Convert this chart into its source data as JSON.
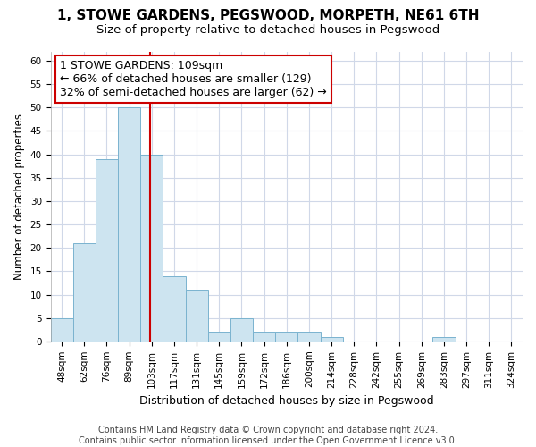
{
  "title": "1, STOWE GARDENS, PEGSWOOD, MORPETH, NE61 6TH",
  "subtitle": "Size of property relative to detached houses in Pegswood",
  "xlabel": "Distribution of detached houses by size in Pegswood",
  "ylabel": "Number of detached properties",
  "bin_labels": [
    "48sqm",
    "62sqm",
    "76sqm",
    "89sqm",
    "103sqm",
    "117sqm",
    "131sqm",
    "145sqm",
    "159sqm",
    "172sqm",
    "186sqm",
    "200sqm",
    "214sqm",
    "228sqm",
    "242sqm",
    "255sqm",
    "269sqm",
    "283sqm",
    "297sqm",
    "311sqm",
    "324sqm"
  ],
  "counts": [
    5,
    21,
    39,
    50,
    40,
    14,
    11,
    2,
    5,
    2,
    2,
    2,
    1,
    0,
    0,
    0,
    0,
    1,
    0,
    0,
    0
  ],
  "bar_color": "#cde4f0",
  "bar_edge_color": "#7ab3cf",
  "property_size_bin": 4,
  "vline_color": "#cc0000",
  "annotation_line1": "1 STOWE GARDENS: 109sqm",
  "annotation_line2": "← 66% of detached houses are smaller (129)",
  "annotation_line3": "32% of semi-detached houses are larger (62) →",
  "annotation_box_color": "#ffffff",
  "annotation_box_edge": "#cc0000",
  "ylim_max": 62,
  "yticks": [
    0,
    5,
    10,
    15,
    20,
    25,
    30,
    35,
    40,
    45,
    50,
    55,
    60
  ],
  "grid_color": "#d0d8e8",
  "footer_text": "Contains HM Land Registry data © Crown copyright and database right 2024.\nContains public sector information licensed under the Open Government Licence v3.0.",
  "title_fontsize": 11,
  "subtitle_fontsize": 9.5,
  "xlabel_fontsize": 9,
  "ylabel_fontsize": 8.5,
  "tick_fontsize": 7.5,
  "annotation_fontsize": 9,
  "footer_fontsize": 7,
  "num_bins": 21
}
